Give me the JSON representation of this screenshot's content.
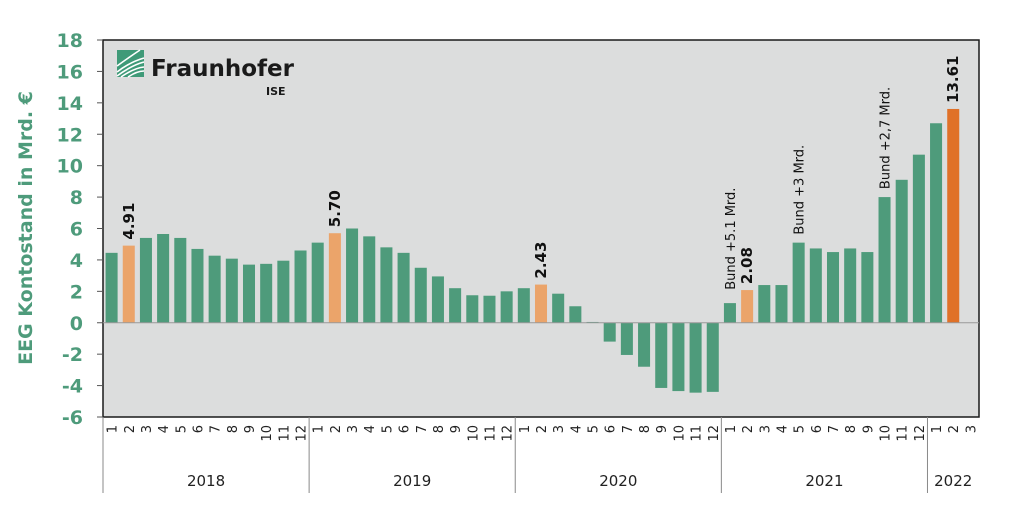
{
  "logo": {
    "name": "Fraunhofer",
    "sub": "ISE",
    "color": "#3f9a78"
  },
  "colors": {
    "bar": "#4e9b7b",
    "highlight": "#eba46a",
    "latest": "#e07128",
    "plot_bg": "#dcdddd",
    "axis_text": "#4e9b7b"
  },
  "chart_data": {
    "type": "bar",
    "title": "",
    "xlabel": "",
    "ylabel": "EEG Kontostand in Mrd. €",
    "ylim": [
      -6,
      18
    ],
    "yticks": [
      18,
      16,
      14,
      12,
      10,
      8,
      6,
      4,
      2,
      0,
      -2,
      -4,
      -6
    ],
    "grid": false,
    "legend": null,
    "groups": [
      {
        "year": "2018",
        "months": [
          "1",
          "2",
          "3",
          "4",
          "5",
          "6",
          "7",
          "8",
          "9",
          "10",
          "11",
          "12"
        ],
        "values": [
          4.45,
          4.91,
          5.4,
          5.65,
          5.4,
          4.7,
          4.27,
          4.08,
          3.7,
          3.75,
          3.95,
          4.6
        ]
      },
      {
        "year": "2019",
        "months": [
          "1",
          "2",
          "3",
          "4",
          "5",
          "6",
          "7",
          "8",
          "9",
          "10",
          "11",
          "12"
        ],
        "values": [
          5.1,
          5.7,
          6.0,
          5.5,
          4.8,
          4.45,
          3.5,
          2.95,
          2.2,
          1.75,
          1.72,
          2.0
        ]
      },
      {
        "year": "2020",
        "months": [
          "1",
          "2",
          "3",
          "4",
          "5",
          "6",
          "7",
          "8",
          "9",
          "10",
          "11",
          "12"
        ],
        "values": [
          2.2,
          2.43,
          1.85,
          1.05,
          0.05,
          -1.2,
          -2.05,
          -2.8,
          -4.15,
          -4.35,
          -4.45,
          -4.4
        ]
      },
      {
        "year": "2021",
        "months": [
          "1",
          "2",
          "3",
          "4",
          "5",
          "6",
          "7",
          "8",
          "9",
          "10",
          "11",
          "12"
        ],
        "values": [
          1.25,
          2.08,
          2.4,
          2.4,
          5.1,
          4.73,
          4.5,
          4.73,
          4.5,
          8.0,
          9.1,
          10.7
        ]
      },
      {
        "year": "2022",
        "months": [
          "1",
          "2",
          "3"
        ],
        "values": [
          12.7,
          13.61,
          null
        ]
      }
    ],
    "highlights": [
      {
        "year": "2018",
        "month": "2",
        "label": "4.91",
        "style": "highlight"
      },
      {
        "year": "2019",
        "month": "2",
        "label": "5.70",
        "style": "highlight"
      },
      {
        "year": "2020",
        "month": "2",
        "label": "2.43",
        "style": "highlight"
      },
      {
        "year": "2021",
        "month": "2",
        "label": "2.08",
        "style": "highlight"
      },
      {
        "year": "2022",
        "month": "2",
        "label": "13.61",
        "style": "latest"
      }
    ],
    "annotations": [
      {
        "year": "2021",
        "month": "1",
        "text": "Bund +5.1 Mrd."
      },
      {
        "year": "2021",
        "month": "5",
        "text": "Bund +3 Mrd."
      },
      {
        "year": "2021",
        "month": "10",
        "text": "Bund +2,7 Mrd."
      }
    ]
  }
}
